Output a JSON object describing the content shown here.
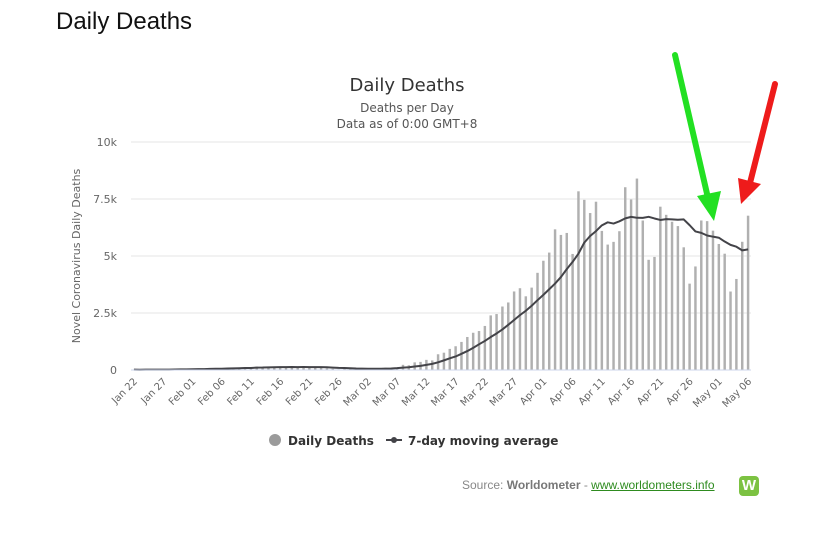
{
  "page": {
    "heading": "Daily Deaths"
  },
  "source": {
    "prefix": "Source: ",
    "name": "Worldometer",
    "separator": " - ",
    "link": "www.worldometers.info",
    "logo_letter": "W"
  },
  "colors": {
    "bar": "#b0b0b0",
    "line": "#434348",
    "grid": "#e6e6e6",
    "green_arrow": "#22e022",
    "red_arrow": "#ee1b1b",
    "logo": "#7cc242",
    "link": "#2e8b1f"
  },
  "annotations": [
    {
      "type": "arrow",
      "color": "green",
      "points_to": "May 04"
    },
    {
      "type": "arrow",
      "color": "red",
      "points_to": "May 05"
    }
  ],
  "chart_data": {
    "type": "bar",
    "title": "Daily Deaths",
    "subtitle": [
      "Deaths per Day",
      "Data as of 0:00 GMT+8"
    ],
    "xlabel": "",
    "ylabel": "Novel Coronavirus Daily Deaths",
    "ylim": [
      0,
      10000
    ],
    "yticks": [
      0,
      2500,
      5000,
      7500,
      10000
    ],
    "ytick_labels": [
      "0",
      "2.5k",
      "5k",
      "7.5k",
      "10k"
    ],
    "x_tick_labels": [
      "Jan 22",
      "Jan 27",
      "Feb 01",
      "Feb 06",
      "Feb 11",
      "Feb 16",
      "Feb 21",
      "Feb 26",
      "Mar 02",
      "Mar 07",
      "Mar 12",
      "Mar 17",
      "Mar 22",
      "Mar 27",
      "Apr 01",
      "Apr 06",
      "Apr 11",
      "Apr 16",
      "Apr 21",
      "Apr 26",
      "May 01",
      "May 06"
    ],
    "grid": true,
    "legend_position": "bottom-center",
    "categories": [
      "Jan 22",
      "Jan 23",
      "Jan 24",
      "Jan 25",
      "Jan 26",
      "Jan 27",
      "Jan 28",
      "Jan 29",
      "Jan 30",
      "Jan 31",
      "Feb 01",
      "Feb 02",
      "Feb 03",
      "Feb 04",
      "Feb 05",
      "Feb 06",
      "Feb 07",
      "Feb 08",
      "Feb 09",
      "Feb 10",
      "Feb 11",
      "Feb 12",
      "Feb 13",
      "Feb 14",
      "Feb 15",
      "Feb 16",
      "Feb 17",
      "Feb 18",
      "Feb 19",
      "Feb 20",
      "Feb 21",
      "Feb 22",
      "Feb 23",
      "Feb 24",
      "Feb 25",
      "Feb 26",
      "Feb 27",
      "Feb 28",
      "Feb 29",
      "Mar 01",
      "Mar 02",
      "Mar 03",
      "Mar 04",
      "Mar 05",
      "Mar 06",
      "Mar 07",
      "Mar 08",
      "Mar 09",
      "Mar 10",
      "Mar 11",
      "Mar 12",
      "Mar 13",
      "Mar 14",
      "Mar 15",
      "Mar 16",
      "Mar 17",
      "Mar 18",
      "Mar 19",
      "Mar 20",
      "Mar 21",
      "Mar 22",
      "Mar 23",
      "Mar 24",
      "Mar 25",
      "Mar 26",
      "Mar 27",
      "Mar 28",
      "Mar 29",
      "Mar 30",
      "Mar 31",
      "Apr 01",
      "Apr 02",
      "Apr 03",
      "Apr 04",
      "Apr 05",
      "Apr 06",
      "Apr 07",
      "Apr 08",
      "Apr 09",
      "Apr 10",
      "Apr 11",
      "Apr 12",
      "Apr 13",
      "Apr 14",
      "Apr 15",
      "Apr 16",
      "Apr 17",
      "Apr 18",
      "Apr 19",
      "Apr 20",
      "Apr 21",
      "Apr 22",
      "Apr 23",
      "Apr 24",
      "Apr 25",
      "Apr 26",
      "Apr 27",
      "Apr 28",
      "Apr 29",
      "Apr 30",
      "May 01",
      "May 02",
      "May 03",
      "May 04",
      "May 05",
      "May 06"
    ],
    "series": [
      {
        "name": "Daily Deaths",
        "type": "bar",
        "values": [
          17,
          8,
          16,
          14,
          24,
          26,
          26,
          38,
          43,
          46,
          45,
          57,
          64,
          66,
          73,
          73,
          86,
          89,
          97,
          108,
          97,
          146,
          121,
          143,
          142,
          106,
          100,
          136,
          115,
          118,
          109,
          97,
          150,
          71,
          52,
          29,
          44,
          47,
          35,
          42,
          67,
          79,
          62,
          96,
          98,
          113,
          227,
          208,
          335,
          356,
          445,
          420,
          690,
          759,
          926,
          1042,
          1232,
          1448,
          1633,
          1709,
          1932,
          2395,
          2454,
          2785,
          2962,
          3445,
          3587,
          3232,
          3614,
          4262,
          4792,
          5150,
          6170,
          5924,
          6011,
          5090,
          7837,
          7463,
          6885,
          7381,
          6101,
          5501,
          5620,
          6087,
          8016,
          7479,
          8396,
          6557,
          4833,
          4960,
          7163,
          6806,
          6502,
          6312,
          5381,
          3788,
          4542,
          6558,
          6529,
          6111,
          5527,
          5101,
          3442,
          3993,
          5623,
          6768
        ]
      },
      {
        "name": "7-day moving average",
        "type": "line",
        "values": [
          17,
          13,
          14,
          14,
          16,
          18,
          19,
          22,
          25,
          28,
          31,
          36,
          41,
          48,
          53,
          57,
          67,
          72,
          79,
          87,
          90,
          103,
          107,
          117,
          121,
          125,
          125,
          130,
          128,
          129,
          127,
          125,
          124,
          119,
          105,
          92,
          85,
          77,
          64,
          58,
          56,
          56,
          54,
          61,
          67,
          80,
          104,
          122,
          155,
          182,
          223,
          268,
          337,
          422,
          512,
          593,
          710,
          830,
          972,
          1126,
          1275,
          1446,
          1602,
          1780,
          1982,
          2192,
          2407,
          2597,
          2818,
          3061,
          3296,
          3543,
          3791,
          4075,
          4425,
          4741,
          5103,
          5587,
          5877,
          6092,
          6345,
          6477,
          6423,
          6521,
          6651,
          6716,
          6675,
          6673,
          6719,
          6646,
          6581,
          6616,
          6608,
          6590,
          6604,
          6354,
          6077,
          6015,
          5900,
          5848,
          5802,
          5634,
          5488,
          5407,
          5248,
          5292
        ]
      }
    ]
  }
}
